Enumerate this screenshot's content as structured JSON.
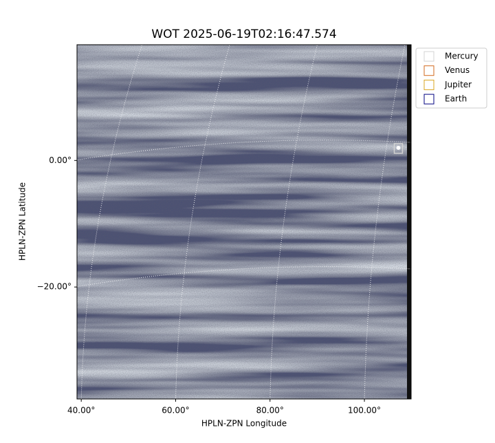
{
  "chart_data": {
    "type": "image",
    "title": "WOT 2025-06-19T02:16:47.574",
    "xlabel": "HPLN-ZPN Longitude",
    "ylabel": "HPLN-ZPN Latitude",
    "xlim": [
      39.1,
      109.9
    ],
    "ylim": [
      -37.7,
      18.3
    ],
    "xticks": [
      {
        "value": 40,
        "label": "40.00°"
      },
      {
        "value": 60,
        "label": "60.00°"
      },
      {
        "value": 80,
        "label": "80.00°"
      },
      {
        "value": 100,
        "label": "100.00°"
      }
    ],
    "yticks": [
      {
        "value": 0,
        "label": "0.00°"
      },
      {
        "value": -20,
        "label": "−20.00°"
      }
    ],
    "grid": true,
    "legend": "outside-upper-right",
    "series": [
      {
        "name": "Mercury",
        "color": "#d3d3d3",
        "x": [
          107.2
        ],
        "y": [
          1.9
        ]
      },
      {
        "name": "Venus",
        "color": "#d2691e",
        "x": [],
        "y": []
      },
      {
        "name": "Jupiter",
        "color": "#daa520",
        "x": [],
        "y": []
      },
      {
        "name": "Earth",
        "color": "#000080",
        "x": [],
        "y": []
      }
    ]
  }
}
